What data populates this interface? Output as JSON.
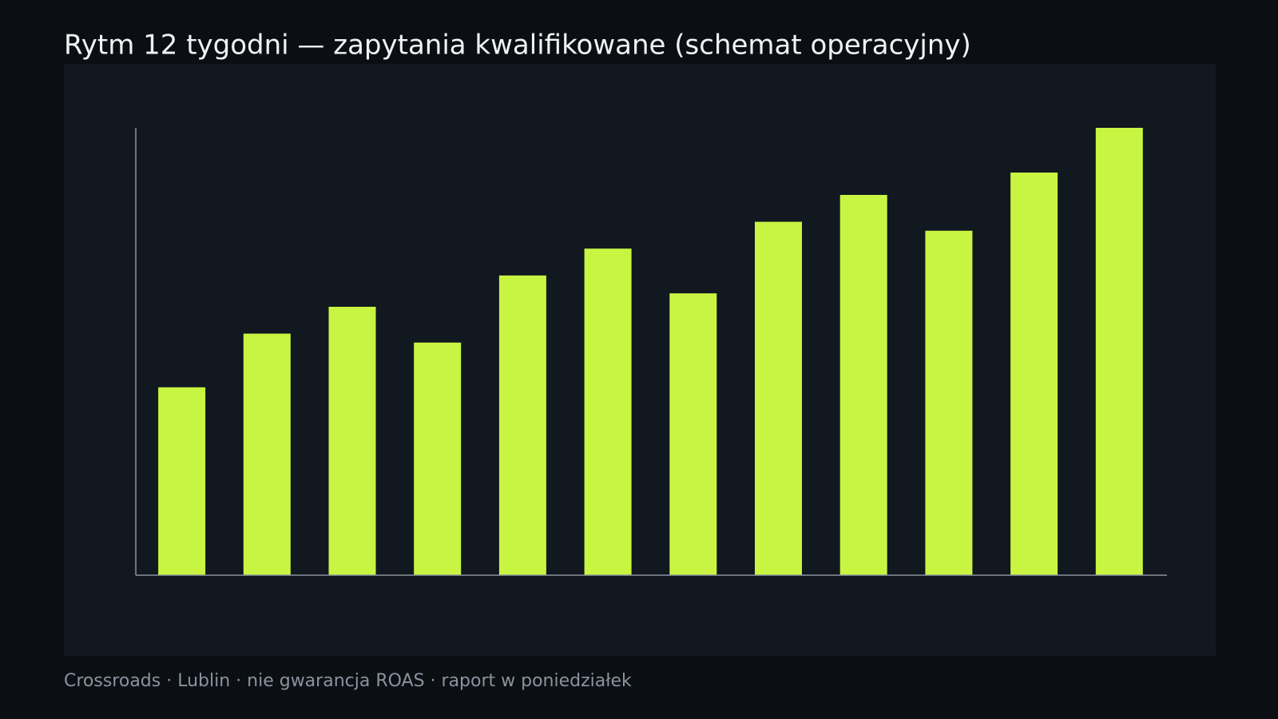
{
  "chart_data": {
    "type": "bar",
    "title": "Rytm 12 tygodni — zapytania kwalifikowane (schemat operacyjny)",
    "footer": "Crossroads · Lublin · nie gwarancja ROAS · raport w poniedziałek",
    "categories": [
      null,
      null,
      null,
      null,
      null,
      null,
      null,
      null,
      null,
      null,
      null,
      null
    ],
    "values": [
      42,
      54,
      60,
      52,
      67,
      73,
      63,
      79,
      85,
      77,
      90,
      100
    ],
    "color": "#c8f542",
    "ylim": [
      0,
      100
    ]
  }
}
